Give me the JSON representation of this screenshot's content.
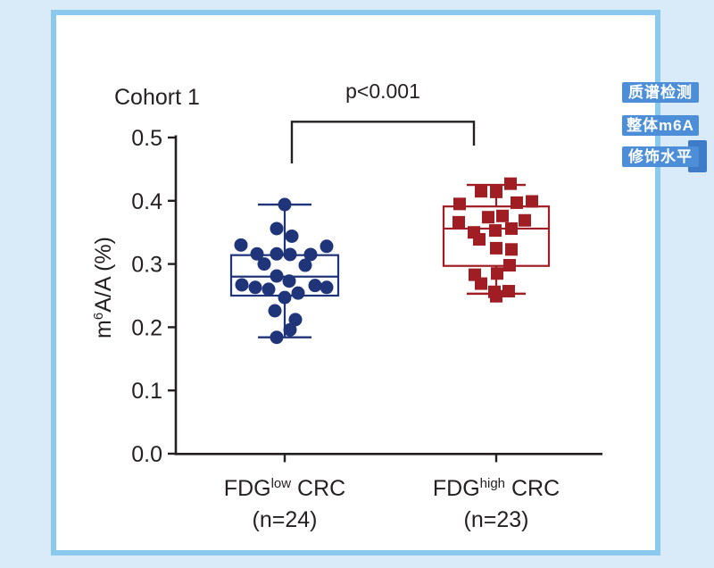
{
  "page": {
    "background": "#D9EBF8",
    "frame_border": "#8CC9EE",
    "surface": "#FFFFFF"
  },
  "badges": {
    "background": "#4C8FD8",
    "tab_background": "#3E7CC8",
    "text_color": "#FFFFFF",
    "items": [
      {
        "label": "质谱检测"
      },
      {
        "label": "整体m6A"
      },
      {
        "label": "修饰水平"
      }
    ]
  },
  "chart_data": {
    "type": "box-scatter",
    "title": "Cohort 1",
    "significance": {
      "text": "p<0.001",
      "between": [
        "FDG low CRC",
        "FDG high CRC"
      ]
    },
    "ylabel": "m6A/A (%)",
    "ylabel_parts": {
      "pre": "m",
      "sup": "6",
      "post": "A/A (%)"
    },
    "ylim": [
      0.0,
      0.5
    ],
    "yticks": [
      0.0,
      0.1,
      0.2,
      0.3,
      0.4,
      0.5
    ],
    "grid": false,
    "ink_color": "#241F20",
    "groups": [
      {
        "name": "FDG low CRC",
        "label_parts": {
          "main": "FDG",
          "sup": "low",
          "tail": " CRC",
          "line2": "(n=24)"
        },
        "n": 24,
        "marker": "circle",
        "color": "#1F3479",
        "box": {
          "whisker_low": 0.184,
          "q1": 0.25,
          "median": 0.28,
          "q3": 0.314,
          "whisker_high": 0.394
        },
        "points": [
          [
            0.394,
            0
          ],
          [
            0.356,
            -9
          ],
          [
            0.344,
            8
          ],
          [
            0.33,
            -49
          ],
          [
            0.328,
            47
          ],
          [
            0.316,
            -31
          ],
          [
            0.316,
            -9
          ],
          [
            0.315,
            6
          ],
          [
            0.315,
            29
          ],
          [
            0.3,
            -23
          ],
          [
            0.298,
            23
          ],
          [
            0.281,
            -9
          ],
          [
            0.273,
            5
          ],
          [
            0.267,
            -48
          ],
          [
            0.263,
            -33
          ],
          [
            0.26,
            -18
          ],
          [
            0.266,
            34
          ],
          [
            0.263,
            47
          ],
          [
            0.254,
            15
          ],
          [
            0.247,
            0
          ],
          [
            0.226,
            -11
          ],
          [
            0.212,
            12
          ],
          [
            0.196,
            6
          ],
          [
            0.184,
            -9
          ]
        ]
      },
      {
        "name": "FDG high CRC",
        "label_parts": {
          "main": "FDG",
          "sup": "high",
          "tail": " CRC",
          "line2": "(n=23)"
        },
        "n": 23,
        "marker": "square",
        "color": "#A01D23",
        "box": {
          "whisker_low": 0.253,
          "q1": 0.297,
          "median": 0.356,
          "q3": 0.391,
          "whisker_high": 0.425
        },
        "points": [
          [
            0.427,
            16
          ],
          [
            0.415,
            -17
          ],
          [
            0.414,
            0
          ],
          [
            0.395,
            -41
          ],
          [
            0.397,
            23
          ],
          [
            0.399,
            40
          ],
          [
            0.366,
            -42
          ],
          [
            0.374,
            -9
          ],
          [
            0.376,
            7
          ],
          [
            0.35,
            -25
          ],
          [
            0.353,
            -1
          ],
          [
            0.356,
            17
          ],
          [
            0.369,
            32
          ],
          [
            0.339,
            -19
          ],
          [
            0.325,
            0
          ],
          [
            0.323,
            17
          ],
          [
            0.298,
            15
          ],
          [
            0.283,
            -24
          ],
          [
            0.285,
            1
          ],
          [
            0.269,
            -17
          ],
          [
            0.256,
            -2
          ],
          [
            0.257,
            14
          ],
          [
            0.249,
            0
          ]
        ]
      }
    ]
  }
}
